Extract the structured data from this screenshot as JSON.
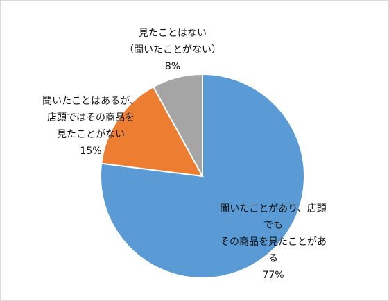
{
  "chart_data": {
    "type": "pie",
    "categories": [
      "聞いたことがあり、店頭でも\nその商品を見たことがある",
      "聞いたことはあるが、\n店頭ではその商品を\n見たことがない",
      "見たことはない\n（聞いたことがない）"
    ],
    "values": [
      77,
      15,
      8
    ],
    "value_labels": [
      "77%",
      "15%",
      "8%"
    ],
    "colors": [
      "#5b9bd5",
      "#ed7d31",
      "#a5a5a5"
    ]
  }
}
